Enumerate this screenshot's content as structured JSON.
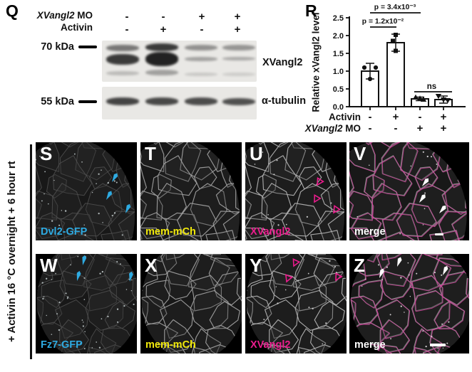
{
  "panel_q": {
    "label": "Q",
    "condition_rows": [
      {
        "gene": "XVangl2",
        "suffix": " MO",
        "values": [
          "-",
          "-",
          "+",
          "+"
        ]
      },
      {
        "gene": "",
        "suffix": "Activin",
        "values": [
          "-",
          "+",
          "-",
          "+"
        ]
      }
    ],
    "markers": {
      "top": "70 kDa",
      "bottom": "55 kDa"
    },
    "blot_labels": {
      "top": "XVangl2",
      "bottom": "α-tubulin"
    }
  },
  "panel_r": {
    "label": "R",
    "x_rows": [
      {
        "gene": "",
        "suffix": "Activin",
        "values": [
          "-",
          "+",
          "-",
          "+"
        ]
      },
      {
        "gene": "XVangl2",
        "suffix": " MO",
        "values": [
          "-",
          "-",
          "+",
          "+"
        ]
      }
    ]
  },
  "chart_data": {
    "type": "bar",
    "title": "",
    "ylabel": "Relative xVangl2 level",
    "ylim": [
      0,
      2.5
    ],
    "ytick_labels": [
      "0.0",
      "0.5",
      "1.0",
      "1.5",
      "2.0",
      "2.5"
    ],
    "categories": [
      "Activin - / XVangl2 MO -",
      "Activin + / XVangl2 MO -",
      "Activin - / XVangl2 MO +",
      "Activin + / XVangl2 MO +"
    ],
    "values": [
      1.0,
      1.8,
      0.22,
      0.2
    ],
    "errors": [
      0.22,
      0.24,
      0.05,
      0.1
    ],
    "points": [
      [
        1.1,
        1.1,
        0.78
      ],
      [
        2.02,
        1.85,
        1.57
      ],
      [
        0.26,
        0.23,
        0.2
      ],
      [
        0.3,
        0.2,
        0.18
      ]
    ],
    "point_markers": [
      "circle",
      "square",
      "triangle-up",
      "triangle-down"
    ],
    "annotations": [
      {
        "text": "p = 3.4x10⁻³",
        "from": 0,
        "to": 2
      },
      {
        "text": "p = 1.2x10⁻²",
        "from": 0,
        "to": 1
      },
      {
        "text": "ns",
        "from": 2,
        "to": 3
      }
    ],
    "grid": false,
    "legend": "none"
  },
  "sidebar": {
    "label": "+ Activin 16 °C overnight + 6 hour rt"
  },
  "micro_rows": [
    {
      "panels": [
        {
          "letter": "S",
          "channel": "Dvl2-GFP",
          "channel_type": "gfp",
          "label_color": "#2eaae1",
          "arrow_color": "#2eaae1"
        },
        {
          "letter": "T",
          "channel": "mem-mCh",
          "channel_type": "mem",
          "label_color": "#f2ea0a",
          "arrow_color": ""
        },
        {
          "letter": "U",
          "channel": "XVangl2",
          "channel_type": "xvangl2",
          "label_color": "#ea1c8d",
          "arrow_color": "#ea1c8d"
        },
        {
          "letter": "V",
          "channel": "merge",
          "channel_type": "merge",
          "label_color": "#ffffff",
          "arrow_color": "#ffffff"
        }
      ]
    },
    {
      "panels": [
        {
          "letter": "W",
          "channel": "Fz7-GFP",
          "channel_type": "gfp",
          "label_color": "#2eaae1",
          "arrow_color": "#2eaae1"
        },
        {
          "letter": "X",
          "channel": "mem-mCh",
          "channel_type": "mem",
          "label_color": "#f2ea0a",
          "arrow_color": ""
        },
        {
          "letter": "Y",
          "channel": "XVangl2",
          "channel_type": "xvangl2",
          "label_color": "#ea1c8d",
          "arrow_color": "#ea1c8d"
        },
        {
          "letter": "Z",
          "channel": "merge",
          "channel_type": "merge",
          "label_color": "#ffffff",
          "arrow_color": "#ffffff"
        }
      ]
    }
  ]
}
